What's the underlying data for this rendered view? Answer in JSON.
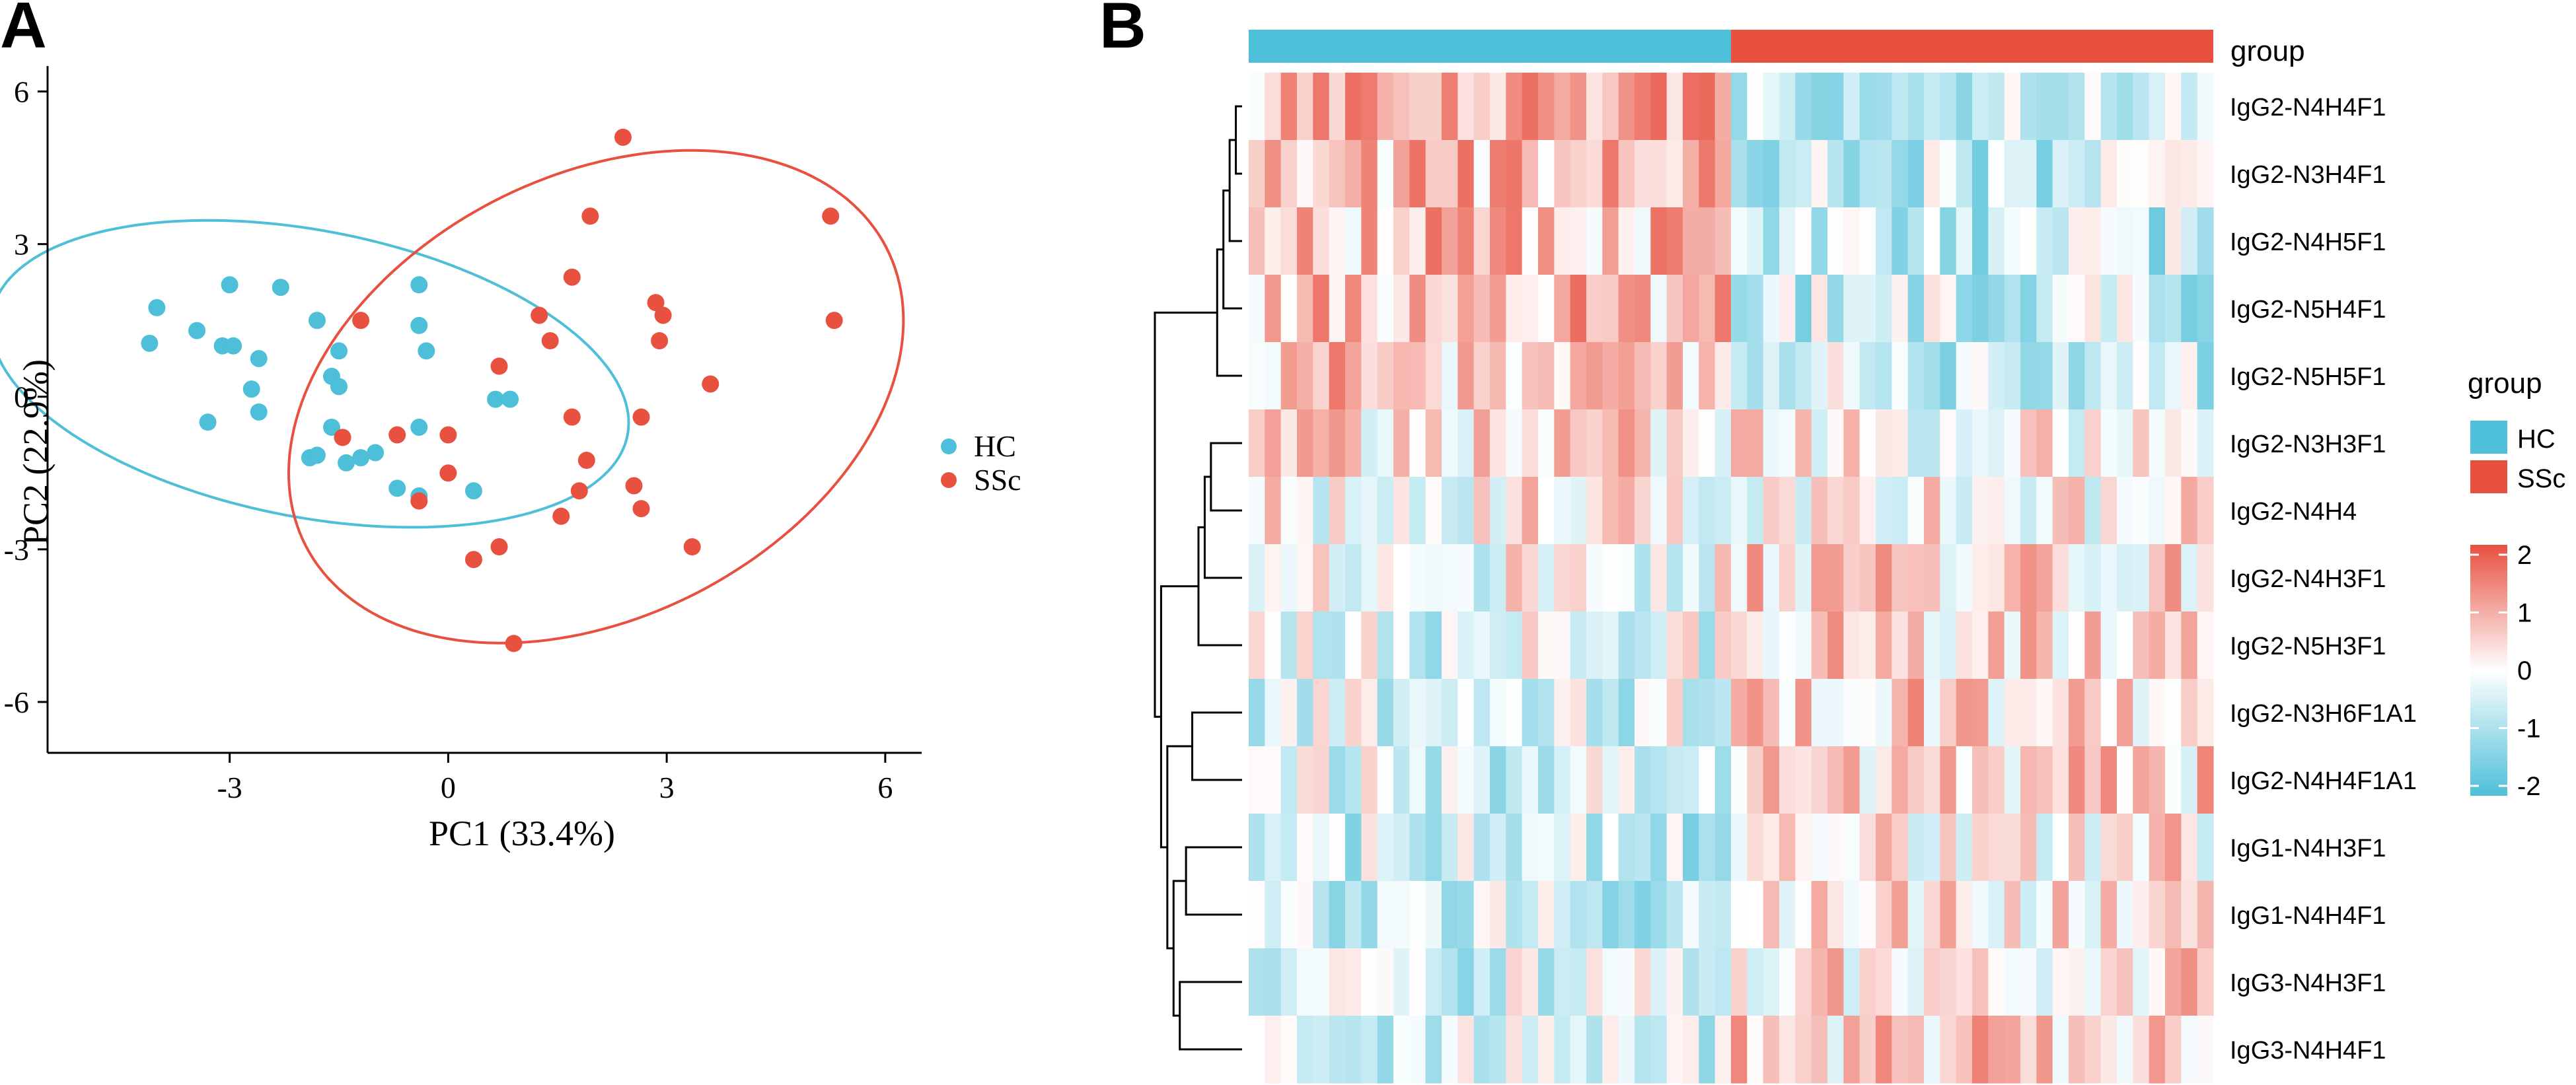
{
  "panels": {
    "a_label": "A",
    "b_label": "B"
  },
  "colors": {
    "hc": "#4DBFD8",
    "ssc": "#E8503F",
    "heat_low": "#4DBFD8",
    "heat_mid": "#FFFFFF",
    "heat_high": "#E8503F",
    "axis": "#000000",
    "dendrogram": "#000000"
  },
  "chart_data": [
    {
      "type": "scatter",
      "title": "",
      "xlabel": "PC1 (33.4%)",
      "ylabel": "PC2 (22.9%)",
      "xlim": [
        -5.5,
        6.5
      ],
      "ylim": [
        -7,
        6.5
      ],
      "xticks": [
        -3,
        0,
        3,
        6
      ],
      "yticks": [
        6,
        3,
        0,
        -3,
        -6
      ],
      "xtick_labels": [
        "-3",
        "0",
        "3",
        "6"
      ],
      "ytick_labels": [
        "6",
        "3",
        "0",
        "-3",
        "-6"
      ],
      "legend": {
        "position": "right",
        "entries": [
          "HC",
          "SSc"
        ]
      },
      "series": [
        {
          "name": "HC",
          "points": [
            [
              -4.0,
              1.75
            ],
            [
              -3.0,
              2.2
            ],
            [
              -2.3,
              2.15
            ],
            [
              -3.45,
              1.3
            ],
            [
              -4.1,
              1.05
            ],
            [
              -3.1,
              1.0
            ],
            [
              -2.6,
              0.75
            ],
            [
              -2.95,
              1.0
            ],
            [
              -1.8,
              1.5
            ],
            [
              -1.5,
              0.9
            ],
            [
              -2.7,
              0.15
            ],
            [
              -2.6,
              -0.3
            ],
            [
              -1.6,
              0.4
            ],
            [
              -1.5,
              0.2
            ],
            [
              -3.3,
              -0.5
            ],
            [
              -1.6,
              -0.6
            ],
            [
              -1.9,
              -1.2
            ],
            [
              -1.8,
              -1.15
            ],
            [
              -1.4,
              -1.3
            ],
            [
              -1.2,
              -1.2
            ],
            [
              -1.0,
              -1.1
            ],
            [
              -0.7,
              -1.8
            ],
            [
              -0.4,
              -1.95
            ],
            [
              -0.4,
              -0.6
            ],
            [
              -0.4,
              1.4
            ],
            [
              -0.3,
              0.9
            ],
            [
              -0.4,
              2.2
            ],
            [
              0.65,
              -0.05
            ],
            [
              0.85,
              -0.05
            ],
            [
              0.35,
              -1.85
            ]
          ]
        },
        {
          "name": "SSc",
          "points": [
            [
              2.4,
              5.1
            ],
            [
              5.25,
              3.55
            ],
            [
              5.3,
              1.5
            ],
            [
              1.95,
              3.55
            ],
            [
              1.7,
              2.35
            ],
            [
              2.85,
              1.85
            ],
            [
              2.95,
              1.6
            ],
            [
              1.25,
              1.6
            ],
            [
              1.4,
              1.1
            ],
            [
              2.9,
              1.1
            ],
            [
              3.6,
              0.25
            ],
            [
              -1.2,
              1.5
            ],
            [
              0.7,
              0.6
            ],
            [
              1.7,
              -0.4
            ],
            [
              2.65,
              -0.4
            ],
            [
              -1.45,
              -0.8
            ],
            [
              -0.7,
              -0.75
            ],
            [
              0.0,
              -0.75
            ],
            [
              1.9,
              -1.25
            ],
            [
              1.8,
              -1.85
            ],
            [
              2.55,
              -1.75
            ],
            [
              0.0,
              -1.5
            ],
            [
              -0.4,
              -2.05
            ],
            [
              2.65,
              -2.2
            ],
            [
              1.55,
              -2.35
            ],
            [
              3.35,
              -2.95
            ],
            [
              0.7,
              -2.95
            ],
            [
              0.35,
              -3.2
            ],
            [
              0.9,
              -4.85
            ]
          ]
        }
      ],
      "ellipses": [
        {
          "group": "HC",
          "center": [
            -1.9,
            0.45
          ],
          "semi_axes": [
            4.55,
            2.75
          ],
          "rotation_deg": -20
        },
        {
          "group": "SSc",
          "center": [
            2.03,
            0.0
          ],
          "semi_axes": [
            5.25,
            3.7
          ],
          "rotation_deg": 57
        }
      ]
    },
    {
      "type": "heatmap",
      "title": "",
      "annotation_label": "group",
      "column_groups": {
        "HC": 30,
        "SSc": 30
      },
      "legend_group_title": "group",
      "legend_group_entries": [
        "HC",
        "SSc"
      ],
      "color_scale_ticks": [
        "2",
        "1",
        "0",
        "-1",
        "-2"
      ],
      "color_scale_range": [
        -2,
        2
      ],
      "row_labels": [
        "IgG2-N4H4F1",
        "IgG2-N3H4F1",
        "IgG2-N4H5F1",
        "IgG2-N5H4F1",
        "IgG2-N5H5F1",
        "IgG2-N3H3F1",
        "IgG2-N4H4",
        "IgG2-N4H3F1",
        "IgG2-N5H3F1",
        "IgG2-N3H6F1A1",
        "IgG2-N4H4F1A1",
        "IgG1-N4H3F1",
        "IgG1-N4H4F1",
        "IgG3-N4H3F1",
        "IgG3-N4H4F1"
      ],
      "row_mean_trend": {
        "HC": [
          0.8,
          0.8,
          0.7,
          0.75,
          0.6,
          0.35,
          0.1,
          0.0,
          -0.3,
          -0.35,
          -0.4,
          -0.6,
          -0.5,
          -0.45,
          -0.6
        ],
        "SSc": [
          -0.6,
          -0.65,
          -0.7,
          -0.6,
          -0.55,
          0.05,
          0.2,
          0.45,
          0.5,
          0.55,
          0.45,
          0.3,
          0.3,
          0.35,
          0.55
        ]
      },
      "dendrogram": [
        [
          0,
          1
        ],
        [
          15,
          2
        ],
        [
          16,
          3
        ],
        [
          17,
          4
        ],
        [
          5,
          6
        ],
        [
          19,
          7
        ],
        [
          20,
          8
        ],
        [
          9,
          10
        ],
        [
          11,
          12
        ],
        [
          13,
          14
        ],
        [
          23,
          24
        ],
        [
          22,
          25
        ],
        [
          21,
          26
        ],
        [
          18,
          27
        ]
      ]
    }
  ]
}
